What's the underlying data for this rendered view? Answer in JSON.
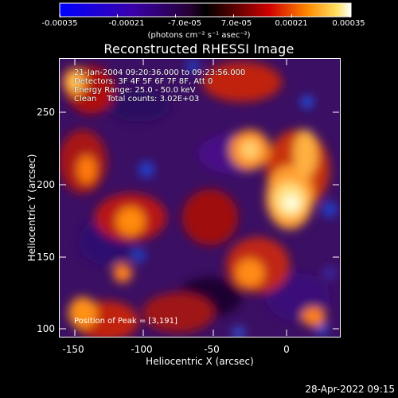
{
  "colorbar": {
    "ticks": [
      "-0.00035",
      "-0.00021",
      "-7.0e-05",
      "7.0e-05",
      "0.00021",
      "0.00035"
    ],
    "units": "(photons cm⁻² s⁻¹ asec⁻²)"
  },
  "title": "Reconstructed RHESSI Image",
  "info": {
    "line1": "21-Jan-2004 09:20:36.000 to 09:23:56.000",
    "line2": "Detectors: 3F 4F 5F 6F 7F 8F, Att 0",
    "line3": "Energy Range: 25.0 - 50.0 keV",
    "line4": "Clean    Total counts: 3.02E+03"
  },
  "peak": "Position of Peak = [3,191]",
  "axes": {
    "xlabel": "Heliocentric X (arcsec)",
    "ylabel": "Heliocentric Y (arcsec)",
    "xticks": [
      "-150",
      "-100",
      "-50",
      "0"
    ],
    "yticks": [
      "100",
      "150",
      "200",
      "250"
    ],
    "xlim": [
      -163,
      28
    ],
    "ylim": [
      95,
      282
    ]
  },
  "timestamp": "28-Apr-2022 09:15"
}
